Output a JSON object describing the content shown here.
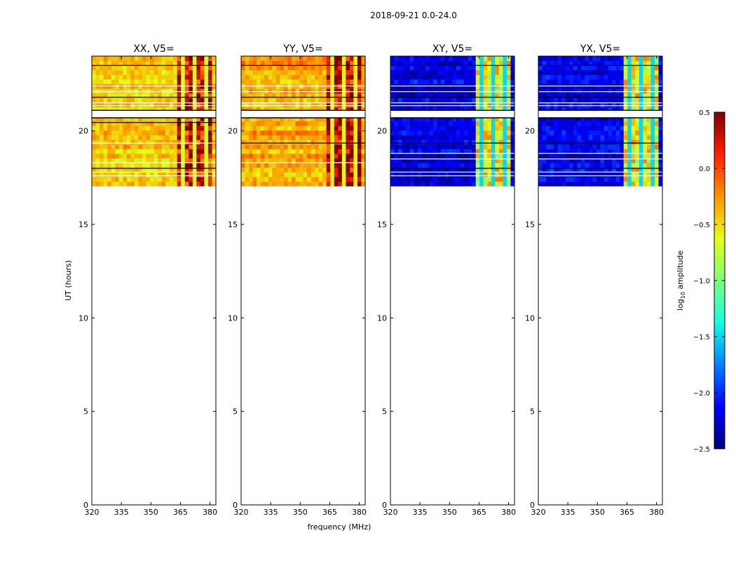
{
  "figure": {
    "suptitle": "2018-09-21 0.0-24.0",
    "xlabel": "frequency (MHz)",
    "ylabel": "UT (hours)",
    "colorbar_label": "log10 amplitude",
    "colorbar_label_base": "log",
    "colorbar_label_sub": "10",
    "colorbar_label_rest": " amplitude",
    "colorbar_ticks": [
      "0.5",
      "0.0",
      "−0.5",
      "−1.0",
      "−1.5",
      "−2.0",
      "−2.5"
    ],
    "colormap": [
      "#00007f",
      "#0000ff",
      "#0080ff",
      "#15ffe1",
      "#7dff7a",
      "#e4ff13",
      "#ff9400",
      "#ff1e00",
      "#7f0000"
    ]
  },
  "chart_data": [
    {
      "type": "heatmap",
      "title": "XX, V5=",
      "xlim": [
        320,
        383
      ],
      "ylim": [
        0,
        24
      ],
      "xticks": [
        320,
        335,
        350,
        365,
        380
      ],
      "yticks": [
        0,
        5,
        10,
        15,
        20
      ],
      "data_range_hours": [
        17.05,
        24.0
      ],
      "gap_hours": [
        20.7,
        21.1
      ],
      "band_MHz": [
        363,
        380
      ],
      "typical_log10_amplitude": -0.45,
      "band_log10_amplitude": 0.2,
      "flagged_rows_hours": [
        23.5,
        22.4,
        22.1,
        21.8,
        21.5,
        21.35,
        20.45,
        19.35,
        18.3,
        18.0,
        17.8,
        17.6
      ]
    },
    {
      "type": "heatmap",
      "title": "YY, V5=",
      "xlim": [
        320,
        383
      ],
      "ylim": [
        0,
        24
      ],
      "xticks": [
        320,
        335,
        350,
        365,
        380
      ],
      "yticks": [
        0,
        5,
        10,
        15,
        20
      ],
      "data_range_hours": [
        17.05,
        24.0
      ],
      "gap_hours": [
        20.7,
        21.1
      ],
      "band_MHz": [
        363,
        380
      ],
      "typical_log10_amplitude": -0.32,
      "band_log10_amplitude": 0.3,
      "flagged_rows_hours": [
        23.5,
        22.4,
        22.1,
        21.8,
        21.5,
        21.35,
        19.35,
        18.3
      ]
    },
    {
      "type": "heatmap",
      "title": "XY, V5=",
      "xlim": [
        320,
        383
      ],
      "ylim": [
        0,
        24
      ],
      "xticks": [
        320,
        335,
        350,
        365,
        380
      ],
      "yticks": [
        0,
        5,
        10,
        15,
        20
      ],
      "data_range_hours": [
        17.05,
        24.0
      ],
      "gap_hours": [
        20.7,
        21.1
      ],
      "band_MHz": [
        363,
        380
      ],
      "typical_log10_amplitude": -2.2,
      "band_log10_amplitude": -0.6,
      "flagged_rows_hours": [
        23.5,
        22.4,
        22.1,
        21.8,
        21.5,
        21.35,
        19.35,
        18.8,
        18.5,
        18.0,
        17.8,
        17.6
      ]
    },
    {
      "type": "heatmap",
      "title": "YX, V5=",
      "xlim": [
        320,
        383
      ],
      "ylim": [
        0,
        24
      ],
      "xticks": [
        320,
        335,
        350,
        365,
        380
      ],
      "yticks": [
        0,
        5,
        10,
        15,
        20
      ],
      "data_range_hours": [
        17.05,
        24.0
      ],
      "gap_hours": [
        20.7,
        21.1
      ],
      "band_MHz": [
        363,
        380
      ],
      "typical_log10_amplitude": -2.2,
      "band_log10_amplitude": -0.6,
      "flagged_rows_hours": [
        23.5,
        22.4,
        22.1,
        21.8,
        21.5,
        21.35,
        19.35,
        18.8,
        18.5,
        18.0,
        17.8,
        17.6
      ]
    }
  ]
}
